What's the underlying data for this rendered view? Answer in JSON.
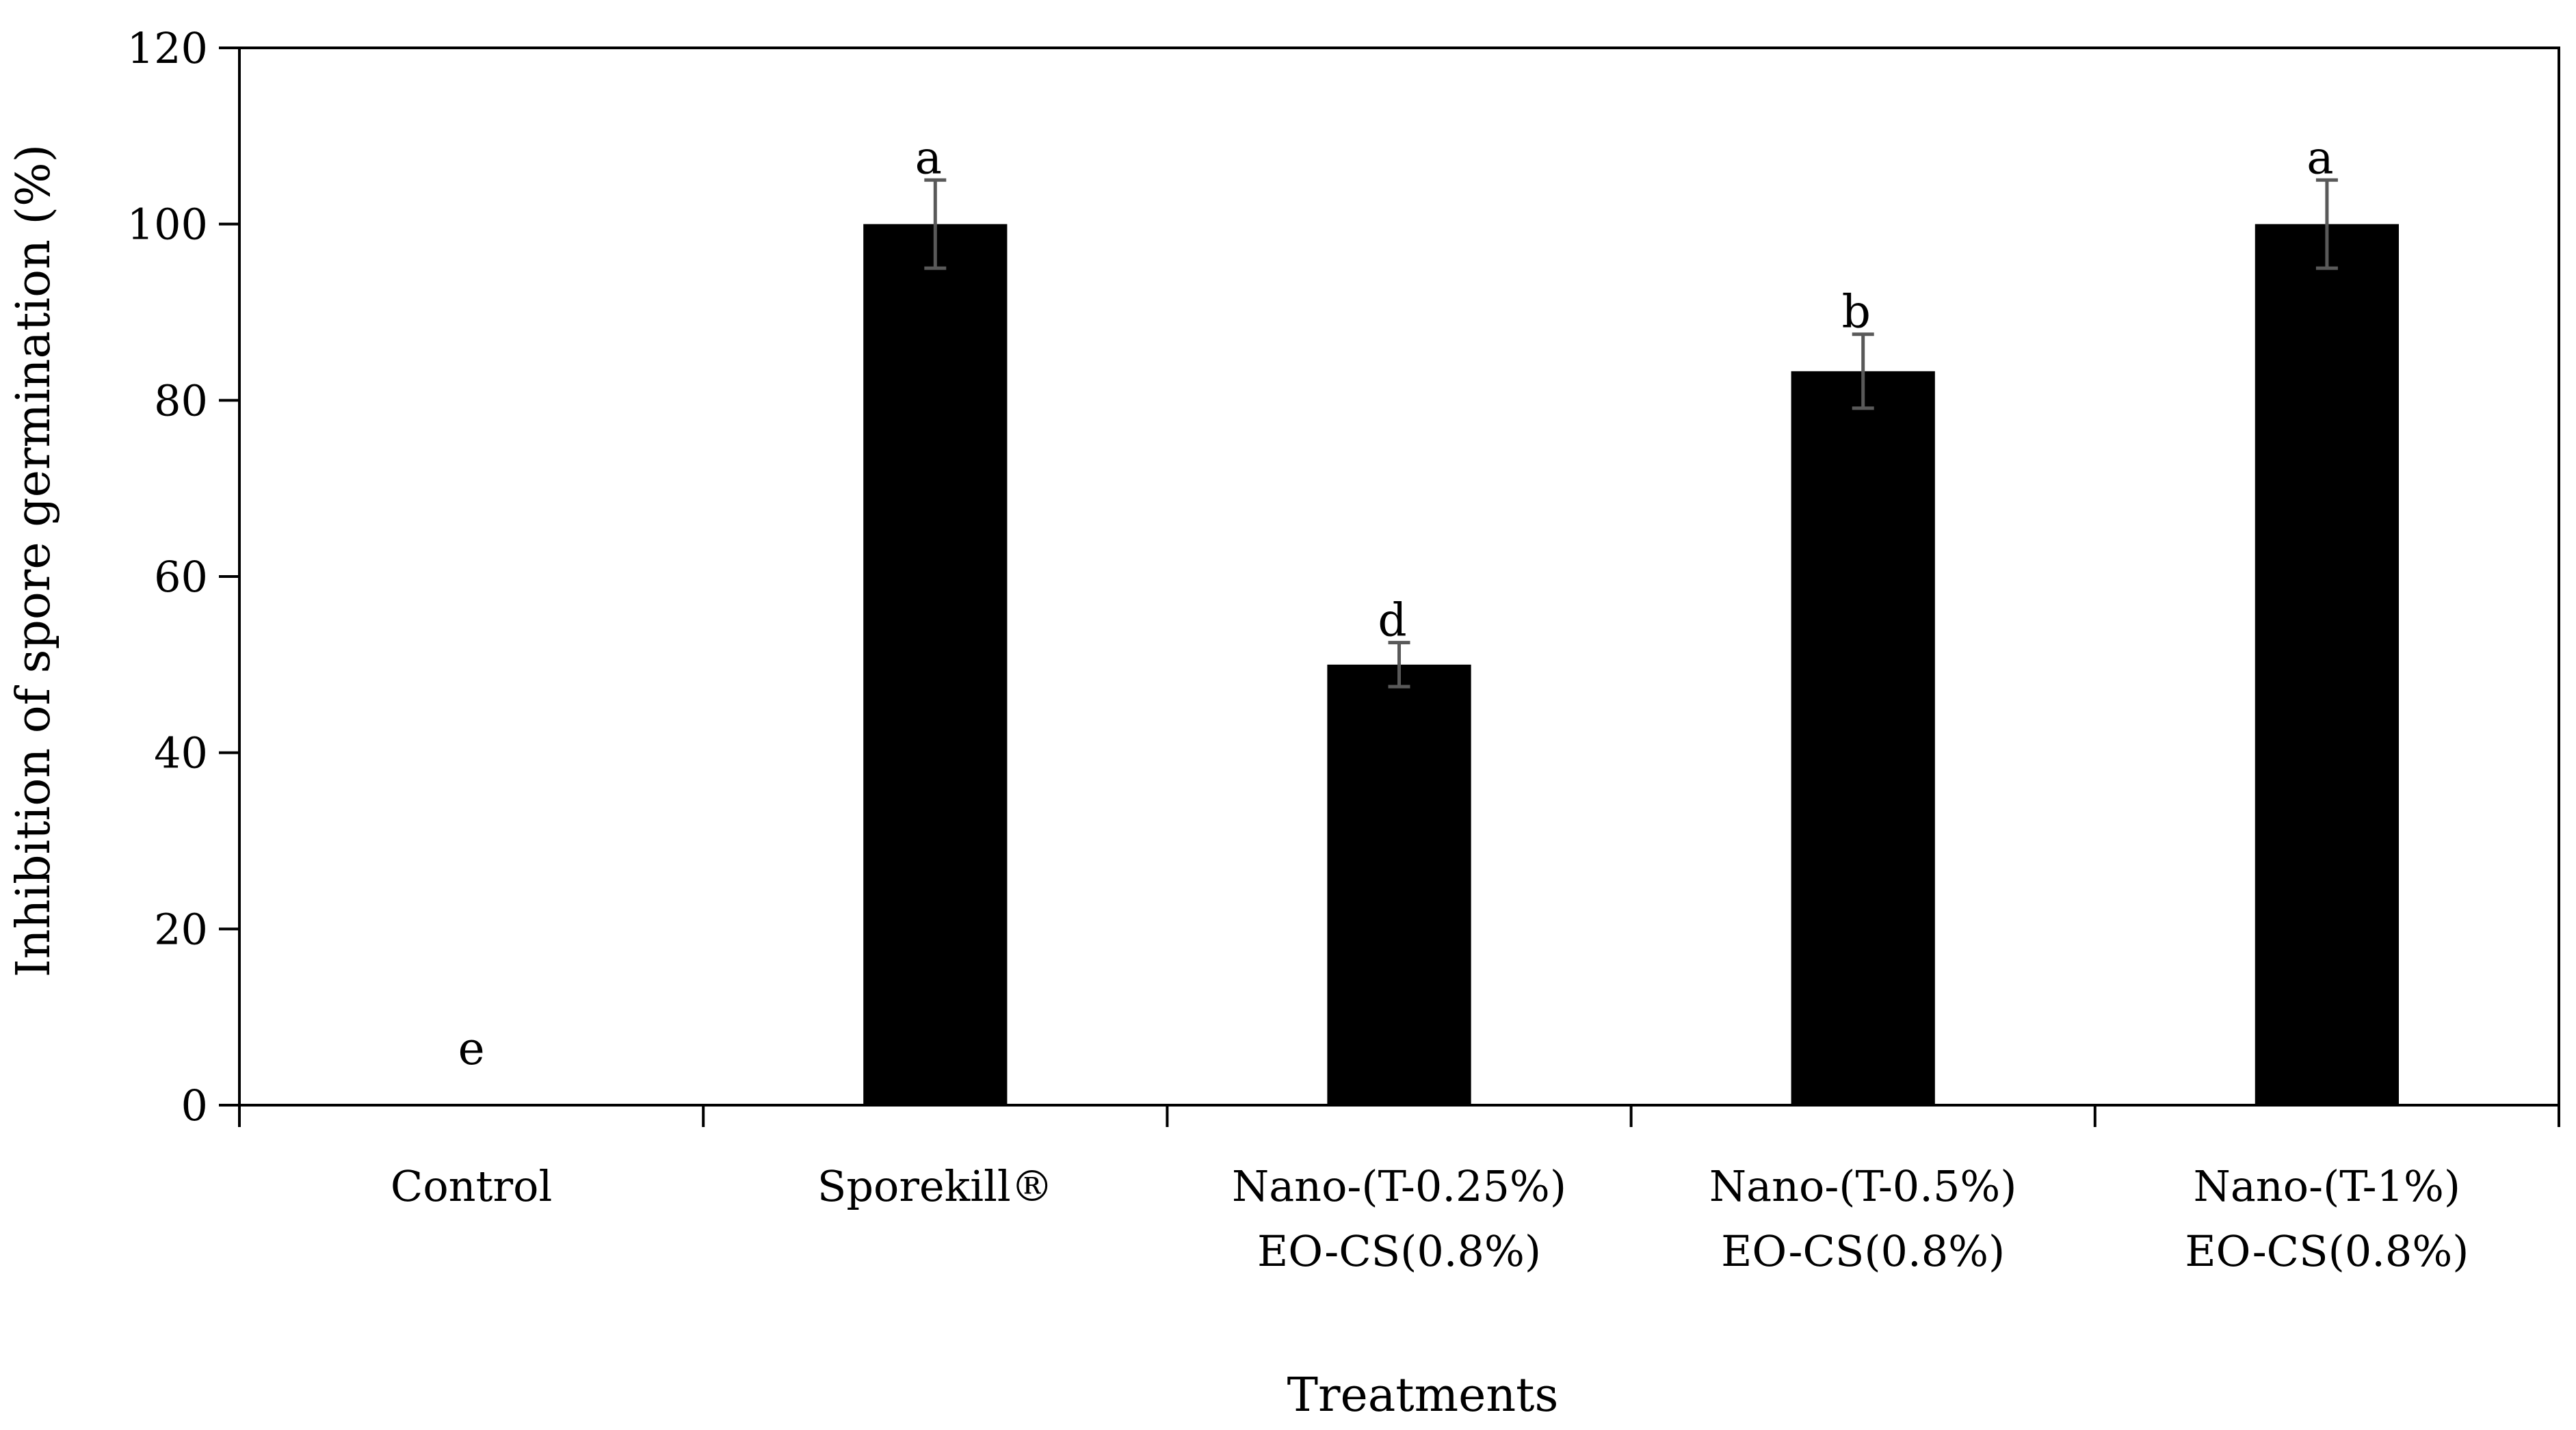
{
  "chart_data": {
    "type": "bar",
    "title": "",
    "xlabel": "Treatments",
    "ylabel": "Inhibition of  spore germination (%)",
    "ylim": [
      0,
      120
    ],
    "yticks": [
      0,
      20,
      40,
      60,
      80,
      100,
      120
    ],
    "grid": false,
    "legend": "none",
    "categories": [
      [
        "Control"
      ],
      [
        "Sporekill®"
      ],
      [
        "Nano-(T-0.25%)",
        "EO-CS(0.8%)"
      ],
      [
        "Nano-(T-0.5%)",
        "EO-CS(0.8%)"
      ],
      [
        "Nano-(T-1%)",
        "EO-CS(0.8%)"
      ]
    ],
    "series": [
      {
        "values": [
          0,
          100,
          50,
          83.3,
          100
        ],
        "errors": [
          0,
          5,
          2.5,
          4.2,
          5
        ],
        "labels": [
          "e",
          "a",
          "d",
          "b",
          "a"
        ],
        "color": "#000000"
      }
    ],
    "error_color": "#595959",
    "axis_color": "#000000"
  }
}
